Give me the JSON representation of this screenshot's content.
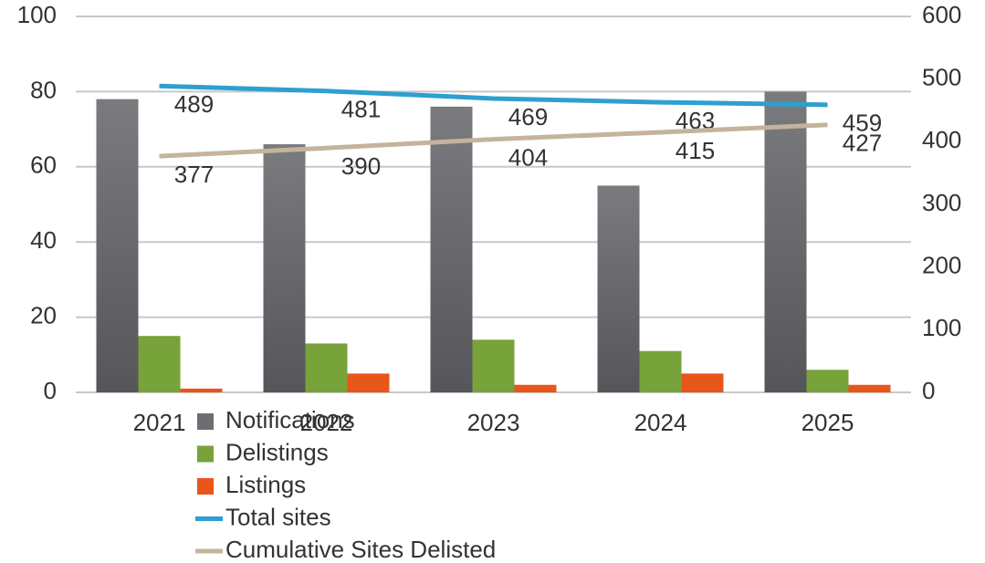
{
  "chart_data": {
    "type": "bar",
    "categories": [
      "2021",
      "2022",
      "2023",
      "2024",
      "2025"
    ],
    "series": [
      {
        "name": "Notifications",
        "type": "bar",
        "color": "#6d6e71",
        "values": [
          78,
          66,
          76,
          55,
          80
        ]
      },
      {
        "name": "Delistings",
        "type": "bar",
        "color": "#77a33a",
        "values": [
          15,
          13,
          14,
          11,
          6
        ]
      },
      {
        "name": "Listings",
        "type": "bar",
        "color": "#e8561a",
        "values": [
          1,
          5,
          2,
          5,
          2
        ]
      },
      {
        "name": "Total sites",
        "type": "line",
        "axis": "y2",
        "color": "#2e9fd0",
        "values": [
          489,
          481,
          469,
          463,
          459
        ]
      },
      {
        "name": "Cumulative Sites Delisted",
        "type": "line",
        "axis": "y2",
        "color": "#c4b49b",
        "values": [
          377,
          390,
          404,
          415,
          427
        ]
      }
    ],
    "ylim": [
      0,
      100
    ],
    "yticks": [
      0,
      20,
      40,
      60,
      80,
      100
    ],
    "y2lim": [
      0,
      600
    ],
    "y2ticks": [
      0,
      100,
      200,
      300,
      400,
      500,
      600
    ],
    "grid": true
  }
}
